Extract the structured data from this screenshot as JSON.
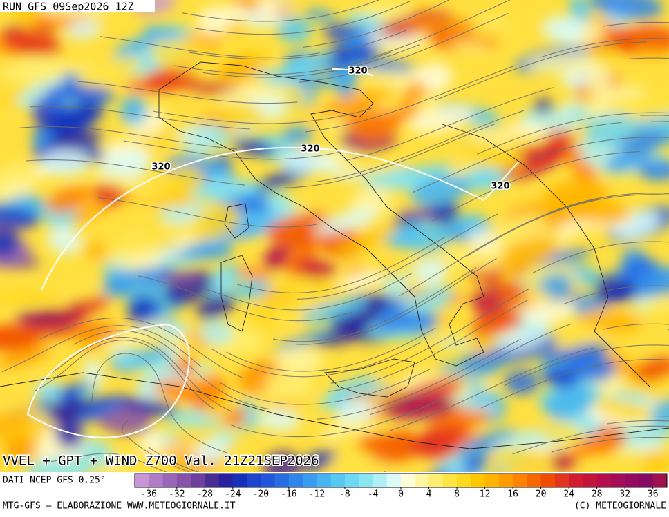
{
  "header": {
    "run": "RUN GFS 09Sep2026 12Z"
  },
  "map": {
    "title": "VVEL + GPT + WIND Z700 Val. 21Z21SEP2026",
    "contour_labels": [
      320,
      320,
      320,
      320
    ]
  },
  "colorbar": {
    "source": "DATI NCEP GFS 0.25°",
    "lim": [
      -38,
      38
    ],
    "ticks": [
      -36,
      -32,
      -28,
      -24,
      -20,
      -16,
      -12,
      -8,
      -4,
      0,
      4,
      8,
      12,
      16,
      20,
      24,
      28,
      32,
      36
    ],
    "colors": [
      "#c896d8",
      "#b07cc8",
      "#9a66b8",
      "#8652a8",
      "#6e3f9c",
      "#4a2c92",
      "#2a20a0",
      "#1830b8",
      "#1c44cc",
      "#2256dc",
      "#286ce4",
      "#3084ea",
      "#389cf0",
      "#44b4f2",
      "#56c8f2",
      "#6ed8f2",
      "#8ce6f2",
      "#b0f0f4",
      "#dcfaf8",
      "#fffcd8",
      "#fff6a4",
      "#ffee70",
      "#ffe444",
      "#ffd820",
      "#ffc800",
      "#ffb400",
      "#ff9c00",
      "#ff8200",
      "#f86800",
      "#f04c00",
      "#e43420",
      "#d41c30",
      "#c4143c",
      "#b40e4c",
      "#a40c56",
      "#940a5e",
      "#880866",
      "#a0104c"
    ]
  },
  "footer": {
    "left": "MTG-GFS – ELABORAZIONE WWW.METEOGIORNALE.IT",
    "right": "(C) METEOGIORNALE"
  }
}
